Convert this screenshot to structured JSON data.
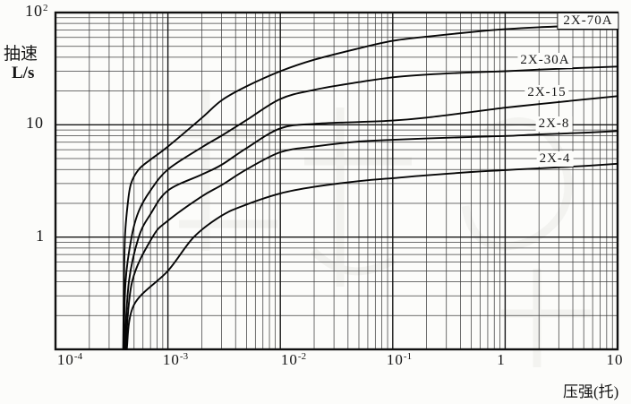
{
  "axes": {
    "y_title_line1": "抽速",
    "y_title_line2": "L/s",
    "x_title": "压强(托)",
    "y_ticks": [
      {
        "base": "10",
        "sup": "2"
      },
      {
        "base": "10",
        "sup": ""
      },
      {
        "base": "1",
        "sup": ""
      }
    ],
    "x_ticks": [
      {
        "base": "10",
        "sup": "-4"
      },
      {
        "base": "10",
        "sup": "-3"
      },
      {
        "base": "10",
        "sup": "-2"
      },
      {
        "base": "10",
        "sup": "-1"
      },
      {
        "base": "1",
        "sup": ""
      },
      {
        "base": "10",
        "sup": ""
      }
    ]
  },
  "colors": {
    "background": "#fcfcfa",
    "grid_minor": "#3f3f3f",
    "grid_major": "#161616",
    "border": "#111111",
    "curve": "#070707",
    "watermark": "#ebebe7"
  },
  "chart_data": {
    "type": "line",
    "x_scale": "log",
    "y_scale": "log",
    "xlim": [
      0.0001,
      10
    ],
    "ylim": [
      0.1,
      100
    ],
    "xlabel": "压强(托)",
    "ylabel": "抽速 L/s",
    "grid": "full log minor gridlines on both axes",
    "legend_position": "labels at right edge of curves",
    "series": [
      {
        "name": "2X-70A",
        "points": [
          [
            0.0004,
            0.1
          ],
          [
            0.000405,
            0.3
          ],
          [
            0.000415,
            1.0
          ],
          [
            0.00044,
            2.0
          ],
          [
            0.00047,
            3.0
          ],
          [
            0.00055,
            4.0
          ],
          [
            0.0007,
            4.9
          ],
          [
            0.001,
            6.4
          ],
          [
            0.002,
            11.5
          ],
          [
            0.003,
            16.5
          ],
          [
            0.005,
            22
          ],
          [
            0.01,
            30
          ],
          [
            0.02,
            38
          ],
          [
            0.05,
            48
          ],
          [
            0.1,
            56
          ],
          [
            0.2,
            61
          ],
          [
            0.5,
            67
          ],
          [
            1,
            71
          ],
          [
            2,
            74
          ],
          [
            5,
            76.5
          ],
          [
            10,
            78
          ]
        ]
      },
      {
        "name": "2X-30A",
        "points": [
          [
            0.000405,
            0.1
          ],
          [
            0.00042,
            0.4
          ],
          [
            0.000475,
            1.0
          ],
          [
            0.00055,
            1.7
          ],
          [
            0.0007,
            2.6
          ],
          [
            0.001,
            4.0
          ],
          [
            0.002,
            6.3
          ],
          [
            0.003,
            8.0
          ],
          [
            0.005,
            11
          ],
          [
            0.01,
            17
          ],
          [
            0.02,
            20.5
          ],
          [
            0.05,
            24
          ],
          [
            0.1,
            26.5
          ],
          [
            0.2,
            28
          ],
          [
            0.5,
            29.3
          ],
          [
            1,
            30
          ],
          [
            2,
            31
          ],
          [
            5,
            32.2
          ],
          [
            10,
            33
          ]
        ]
      },
      {
        "name": "2X-15",
        "points": [
          [
            0.00041,
            0.1
          ],
          [
            0.00045,
            0.4
          ],
          [
            0.00055,
            1.0
          ],
          [
            0.0007,
            1.6
          ],
          [
            0.001,
            2.6
          ],
          [
            0.002,
            3.6
          ],
          [
            0.003,
            4.4
          ],
          [
            0.005,
            6.2
          ],
          [
            0.01,
            9.3
          ],
          [
            0.02,
            10.2
          ],
          [
            0.05,
            10.6
          ],
          [
            0.1,
            10.9
          ],
          [
            0.2,
            11.6
          ],
          [
            0.5,
            13
          ],
          [
            1,
            14.2
          ],
          [
            2,
            15.3
          ],
          [
            5,
            16.8
          ],
          [
            10,
            18
          ]
        ]
      },
      {
        "name": "2X-8",
        "points": [
          [
            0.00042,
            0.1
          ],
          [
            0.00048,
            0.4
          ],
          [
            0.00073,
            1.0
          ],
          [
            0.001,
            1.4
          ],
          [
            0.002,
            2.3
          ],
          [
            0.003,
            2.9
          ],
          [
            0.005,
            4.0
          ],
          [
            0.01,
            5.7
          ],
          [
            0.02,
            6.4
          ],
          [
            0.05,
            7.1
          ],
          [
            0.1,
            7.35
          ],
          [
            0.2,
            7.55
          ],
          [
            0.5,
            7.8
          ],
          [
            1,
            7.95
          ],
          [
            2,
            8.2
          ],
          [
            5,
            8.5
          ],
          [
            10,
            8.8
          ]
        ]
      },
      {
        "name": "2X-4",
        "points": [
          [
            0.00043,
            0.1
          ],
          [
            0.0005,
            0.25
          ],
          [
            0.001,
            0.5
          ],
          [
            0.0017,
            1.0
          ],
          [
            0.003,
            1.55
          ],
          [
            0.005,
            1.95
          ],
          [
            0.01,
            2.45
          ],
          [
            0.02,
            2.8
          ],
          [
            0.05,
            3.15
          ],
          [
            0.1,
            3.35
          ],
          [
            0.2,
            3.55
          ],
          [
            0.5,
            3.8
          ],
          [
            1,
            3.95
          ],
          [
            2,
            4.1
          ],
          [
            5,
            4.3
          ],
          [
            10,
            4.5
          ]
        ]
      }
    ]
  }
}
